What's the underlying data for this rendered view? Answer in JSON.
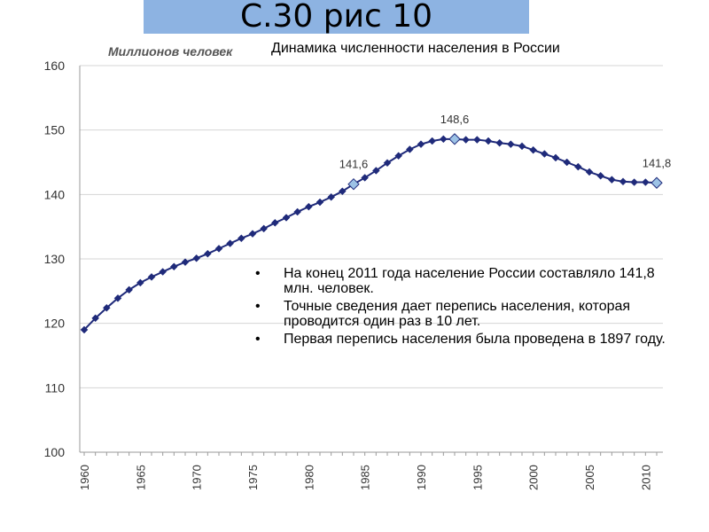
{
  "header": {
    "label": "С.30 рис 10",
    "bg_color": "#8db3e2"
  },
  "unit_label": "Миллионов человек",
  "notes": [
    " На  конец 2011 года население России составляло 141,8 млн. человек.",
    "Точные сведения дает перепись населения, которая проводится один раз в 10 лет.",
    "Первая перепись населения была проведена в 1897 году."
  ],
  "chart_data": {
    "type": "line",
    "title": "Динамика численности населения в России",
    "xlabel": "",
    "ylabel": "Миллионов человек",
    "ylim": [
      100,
      160
    ],
    "xlim": [
      1960,
      2011
    ],
    "yticks": [
      100,
      110,
      120,
      130,
      140,
      150,
      160
    ],
    "xticks": [
      1960,
      1965,
      1970,
      1975,
      1980,
      1985,
      1990,
      1995,
      2000,
      2005,
      2010
    ],
    "grid": true,
    "series_color": "#1f2a7a",
    "highlight_color": "#9dc3e6",
    "x": [
      1960,
      1961,
      1962,
      1963,
      1964,
      1965,
      1966,
      1967,
      1968,
      1969,
      1970,
      1971,
      1972,
      1973,
      1974,
      1975,
      1976,
      1977,
      1978,
      1979,
      1980,
      1981,
      1982,
      1983,
      1984,
      1985,
      1986,
      1987,
      1988,
      1989,
      1990,
      1991,
      1992,
      1993,
      1994,
      1995,
      1996,
      1997,
      1998,
      1999,
      2000,
      2001,
      2002,
      2003,
      2004,
      2005,
      2006,
      2007,
      2008,
      2009,
      2010,
      2011
    ],
    "values": [
      119.0,
      120.8,
      122.4,
      123.9,
      125.2,
      126.3,
      127.2,
      128.0,
      128.8,
      129.5,
      130.1,
      130.8,
      131.6,
      132.4,
      133.2,
      133.9,
      134.7,
      135.6,
      136.4,
      137.3,
      138.1,
      138.8,
      139.6,
      140.5,
      141.6,
      142.6,
      143.7,
      144.9,
      146.0,
      147.0,
      147.8,
      148.3,
      148.6,
      148.6,
      148.5,
      148.5,
      148.3,
      148.0,
      147.8,
      147.5,
      146.9,
      146.3,
      145.7,
      145.0,
      144.3,
      143.5,
      142.9,
      142.3,
      142.0,
      141.9,
      141.9,
      141.8
    ],
    "annotations": [
      {
        "x": 1984,
        "y": 141.6,
        "label": "141,6"
      },
      {
        "x": 1993,
        "y": 148.6,
        "label": "148,6"
      },
      {
        "x": 2011,
        "y": 141.8,
        "label": "141,8"
      }
    ]
  }
}
